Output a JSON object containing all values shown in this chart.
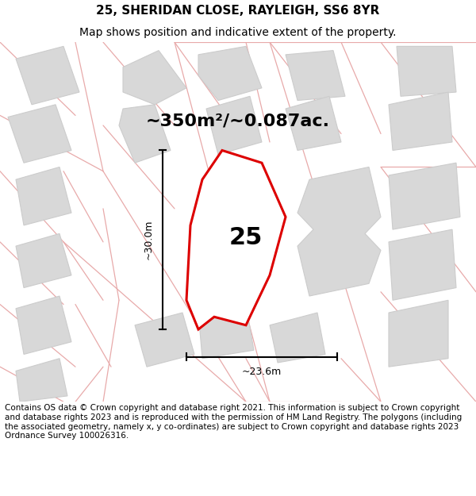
{
  "title_line1": "25, SHERIDAN CLOSE, RAYLEIGH, SS6 8YR",
  "title_line2": "Map shows position and indicative extent of the property.",
  "area_label": "~350m²/~0.087ac.",
  "number_label": "25",
  "width_label": "~23.6m",
  "height_label": "~30.0m",
  "footer_text": "Contains OS data © Crown copyright and database right 2021. This information is subject to Crown copyright and database rights 2023 and is reproduced with the permission of HM Land Registry. The polygons (including the associated geometry, namely x, y co-ordinates) are subject to Crown copyright and database rights 2023 Ordnance Survey 100026316.",
  "bg_color": "#ffffff",
  "map_bg": "#f7f7f7",
  "building_fill": "#d8d8d8",
  "parcel_line_color": "#e8aaaa",
  "building_edge_color": "#cccccc",
  "highlight_edge": "#dd0000",
  "highlight_fill": "#ffffff",
  "title_fontsize": 11,
  "subtitle_fontsize": 10,
  "area_fontsize": 16,
  "number_fontsize": 22,
  "footer_fontsize": 7.5
}
